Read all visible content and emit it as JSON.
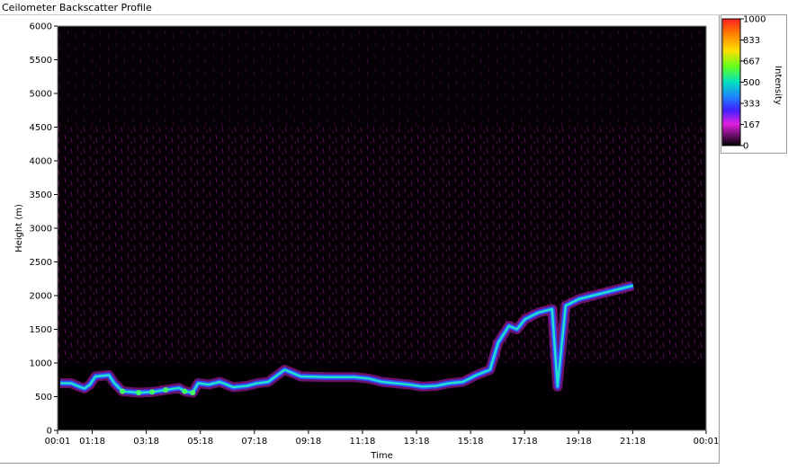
{
  "window": {
    "title": "Ceilometer Backscatter Profile"
  },
  "chart_data": {
    "type": "heatmap",
    "title": "Ceilometer Backscatter Profile",
    "xlabel": "Time",
    "ylabel": "Height (m)",
    "x_ticks": [
      "00:01",
      "01:18",
      "03:18",
      "05:18",
      "07:18",
      "09:18",
      "11:18",
      "13:18",
      "15:18",
      "17:18",
      "19:18",
      "21:18",
      "00:01"
    ],
    "x_tick_hours": [
      0,
      1.283,
      3.283,
      5.283,
      7.283,
      9.283,
      11.283,
      13.283,
      15.283,
      17.283,
      19.283,
      21.283,
      24
    ],
    "xlim_hours": [
      0,
      24
    ],
    "y_ticks": [
      0,
      500,
      1000,
      1500,
      2000,
      2500,
      3000,
      3500,
      4000,
      4500,
      5000,
      5500,
      6000
    ],
    "ylim": [
      0,
      6000
    ],
    "colorbar": {
      "label": "Intensity",
      "ticks": [
        1000,
        833,
        667,
        500,
        333,
        167,
        0
      ],
      "range": [
        0,
        1000
      ]
    },
    "layers": [
      {
        "name": "",
        "points_hour_height": [
          [
            0.1,
            700
          ],
          [
            0.5,
            700
          ],
          [
            0.8,
            650
          ],
          [
            1.0,
            620
          ],
          [
            1.2,
            680
          ],
          [
            1.4,
            800
          ],
          [
            1.9,
            820
          ],
          [
            2.1,
            700
          ],
          [
            2.4,
            580
          ],
          [
            3.0,
            560
          ],
          [
            3.5,
            570
          ],
          [
            4.0,
            600
          ],
          [
            4.5,
            630
          ],
          [
            4.7,
            580
          ],
          [
            5.0,
            560
          ],
          [
            5.2,
            700
          ],
          [
            5.6,
            680
          ],
          [
            6.0,
            720
          ],
          [
            6.5,
            640
          ],
          [
            7.0,
            660
          ],
          [
            7.4,
            700
          ],
          [
            7.8,
            720
          ],
          [
            8.4,
            900
          ],
          [
            9.0,
            800
          ],
          [
            10.0,
            790
          ],
          [
            11.0,
            790
          ],
          [
            11.5,
            770
          ],
          [
            12.0,
            720
          ],
          [
            12.5,
            700
          ],
          [
            13.0,
            680
          ],
          [
            13.5,
            650
          ],
          [
            14.0,
            660
          ],
          [
            14.5,
            700
          ],
          [
            15.0,
            720
          ],
          [
            15.5,
            820
          ],
          [
            16.0,
            900
          ],
          [
            16.3,
            1300
          ],
          [
            16.7,
            1550
          ],
          [
            17.0,
            1500
          ],
          [
            17.3,
            1650
          ],
          [
            17.8,
            1750
          ],
          [
            18.3,
            1800
          ],
          [
            18.5,
            650
          ],
          [
            18.8,
            1850
          ],
          [
            19.3,
            1950
          ],
          [
            19.8,
            2000
          ],
          [
            20.3,
            2050
          ],
          [
            20.8,
            2100
          ],
          [
            21.3,
            2150
          ]
        ],
        "intensity": 550
      }
    ]
  }
}
